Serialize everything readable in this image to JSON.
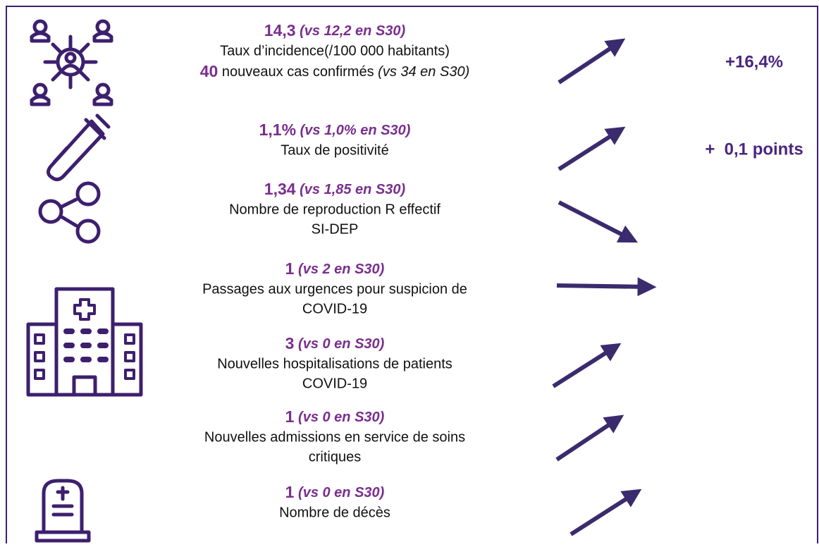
{
  "rows": [
    {
      "value": "14,3",
      "comparison": "(vs 12,2 en S30)",
      "lines": [
        "Taux d’incidence(/100 000 habitants)"
      ],
      "extra": {
        "value": "40",
        "text": "nouveaux cas confirmés",
        "comparison": "(vs 34 en S30)"
      },
      "change": "+16,4%"
    },
    {
      "value": "1,1%",
      "comparison": "(vs 1,0% en S30)",
      "lines": [
        "Taux de positivité"
      ],
      "change": "+  0,1 points"
    },
    {
      "value": "1,34",
      "comparison": "(vs 1,85 en S30)",
      "lines": [
        "Nombre de reproduction R effectif",
        "SI-DEP"
      ]
    },
    {
      "value": "1",
      "comparison": "(vs 2 en S30)",
      "lines": [
        "Passages aux urgences pour suspicion de",
        "COVID-19"
      ]
    },
    {
      "value": "3",
      "comparison": "(vs 0 en S30)",
      "lines": [
        "Nouvelles hospitalisations de patients",
        "COVID-19"
      ]
    },
    {
      "value": "1",
      "comparison": "(vs 0 en S30)",
      "lines": [
        "Nouvelles admissions en service de soins",
        "critiques"
      ]
    },
    {
      "value": "1",
      "comparison": "(vs 0 en S30)",
      "lines": [
        "Nombre de décès"
      ]
    }
  ]
}
